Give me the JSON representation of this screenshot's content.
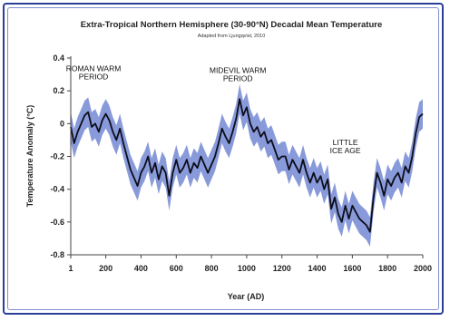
{
  "colors": {
    "frame_border": "#2a3f9a",
    "line": "#0d0d1a",
    "band": "#7b8fd6"
  },
  "chart_data": {
    "type": "line",
    "title": "Extra-Tropical Northern Hemisphere (30-90°N) Decadal Mean Temperature",
    "subtitle": "Adapted from Ljungqvist, 2010",
    "xlabel": "Year (AD)",
    "ylabel": "Temperature Anomaly (°C)",
    "xlim": [
      1,
      2000
    ],
    "ylim": [
      -0.8,
      0.4
    ],
    "xticks": [
      1,
      200,
      400,
      600,
      800,
      1000,
      1200,
      1400,
      1600,
      1800,
      2000
    ],
    "yticks": [
      0.4,
      0.2,
      0,
      -0.2,
      -0.4,
      -0.6,
      -0.8
    ],
    "grid": false,
    "uncertainty_halfwidth": 0.09,
    "annotations": [
      {
        "lines": [
          "ROMAN WARM",
          "PERIOD"
        ],
        "x": 130,
        "y": 0.32
      },
      {
        "lines": [
          "MIDEVIL WARM",
          "PERIOD"
        ],
        "x": 950,
        "y": 0.31
      },
      {
        "lines": [
          "LITTLE",
          "ICE AGE"
        ],
        "x": 1560,
        "y": -0.13
      }
    ],
    "series": [
      {
        "x": [
          1,
          20,
          40,
          60,
          80,
          100,
          120,
          140,
          160,
          180,
          200,
          220,
          240,
          260,
          280,
          300,
          320,
          340,
          360,
          380,
          400,
          420,
          440,
          460,
          480,
          500,
          520,
          540,
          560,
          580,
          600,
          620,
          640,
          660,
          680,
          700,
          720,
          740,
          760,
          780,
          800,
          820,
          840,
          860,
          880,
          900,
          920,
          940,
          960,
          980,
          1000,
          1020,
          1040,
          1060,
          1080,
          1100,
          1120,
          1140,
          1160,
          1180,
          1200,
          1220,
          1240,
          1260,
          1280,
          1300,
          1320,
          1340,
          1360,
          1380,
          1400,
          1420,
          1440,
          1460,
          1480,
          1500,
          1520,
          1540,
          1560,
          1580,
          1600,
          1620,
          1640,
          1660,
          1680,
          1700,
          1720,
          1740,
          1760,
          1780,
          1800,
          1820,
          1840,
          1860,
          1880,
          1900,
          1920,
          1940,
          1960,
          1980,
          2000
        ],
        "values": [
          -0.02,
          -0.12,
          -0.05,
          0.0,
          0.05,
          0.07,
          -0.02,
          0.0,
          -0.05,
          0.02,
          0.06,
          0.02,
          -0.05,
          -0.1,
          -0.03,
          -0.12,
          -0.2,
          -0.28,
          -0.33,
          -0.38,
          -0.3,
          -0.26,
          -0.2,
          -0.3,
          -0.24,
          -0.34,
          -0.26,
          -0.3,
          -0.44,
          -0.3,
          -0.22,
          -0.3,
          -0.27,
          -0.22,
          -0.3,
          -0.24,
          -0.27,
          -0.2,
          -0.25,
          -0.3,
          -0.25,
          -0.2,
          -0.12,
          -0.03,
          -0.08,
          -0.12,
          -0.05,
          0.03,
          0.15,
          0.05,
          0.1,
          0.0,
          -0.05,
          -0.02,
          -0.08,
          -0.05,
          -0.12,
          -0.1,
          -0.16,
          -0.22,
          -0.2,
          -0.2,
          -0.28,
          -0.22,
          -0.26,
          -0.3,
          -0.22,
          -0.3,
          -0.36,
          -0.3,
          -0.36,
          -0.32,
          -0.4,
          -0.34,
          -0.52,
          -0.45,
          -0.55,
          -0.6,
          -0.5,
          -0.58,
          -0.5,
          -0.54,
          -0.58,
          -0.6,
          -0.62,
          -0.66,
          -0.45,
          -0.3,
          -0.36,
          -0.44,
          -0.34,
          -0.38,
          -0.33,
          -0.3,
          -0.36,
          -0.26,
          -0.3,
          -0.2,
          -0.06,
          0.04,
          0.06
        ]
      }
    ]
  }
}
